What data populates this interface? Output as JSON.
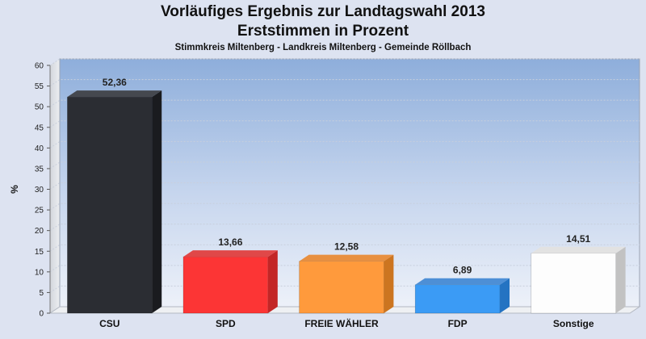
{
  "chart_data": {
    "type": "bar",
    "title": "Vorläufiges Ergebnis zur Landtagswahl 2013",
    "subtitle": "Erststimmen in Prozent",
    "caption": "Stimmkreis Miltenberg - Landkreis Miltenberg - Gemeinde Röllbach",
    "ylabel": "%",
    "xlabel": "",
    "ylim": [
      0,
      60
    ],
    "yticks": [
      0,
      5,
      10,
      15,
      20,
      25,
      30,
      35,
      40,
      45,
      50,
      55,
      60
    ],
    "grid": true,
    "categories": [
      "CSU",
      "SPD",
      "FREIE WÄHLER",
      "FDP",
      "Sonstige"
    ],
    "values": [
      52.36,
      13.66,
      12.58,
      6.89,
      14.51
    ],
    "value_labels": [
      "52,36",
      "13,66",
      "12,58",
      "6,89",
      "14,51"
    ],
    "colors": [
      "#2b2d33",
      "#fc3535",
      "#ff9a3c",
      "#3b9bf5",
      "#fdfdfd"
    ],
    "side_colors": [
      "#1a1b1f",
      "#c32626",
      "#cc7520",
      "#2473c2",
      "#c2c2c2"
    ],
    "top_colors": [
      "#45484f",
      "#e04848",
      "#e89040",
      "#4d8fd6",
      "#e2e2e2"
    ]
  }
}
